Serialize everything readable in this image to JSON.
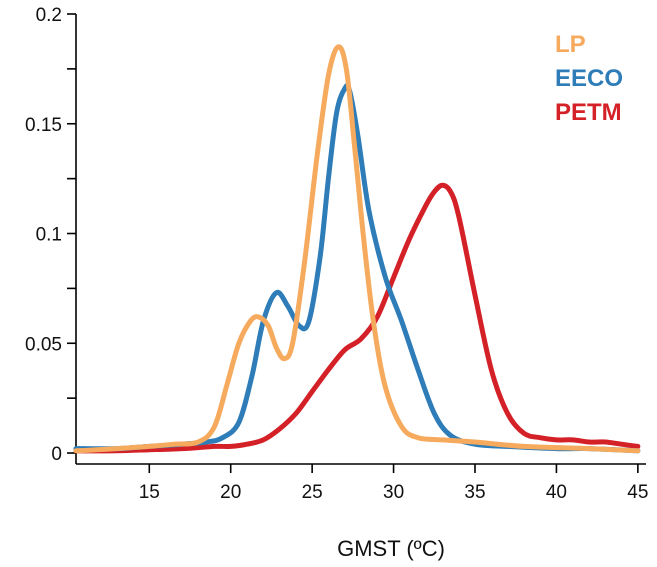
{
  "chart_data": {
    "type": "line",
    "title": "",
    "xlabel": "GMST (ºC)",
    "ylabel": "",
    "xlim": [
      10.5,
      45.5
    ],
    "ylim": [
      -0.005,
      0.2
    ],
    "x_ticks": [
      15,
      20,
      25,
      30,
      35,
      40,
      45
    ],
    "x_tick_labels": [
      "15",
      "20",
      "25",
      "30",
      "35",
      "40",
      "45"
    ],
    "y_ticks": [
      0,
      0.05,
      0.1,
      0.15,
      0.2
    ],
    "y_tick_labels": [
      "0",
      "0.05",
      "0.1",
      "0.15",
      "0.2"
    ],
    "grid": false,
    "legend_position": "top-right",
    "series": [
      {
        "name": "PETM",
        "color": "#d42027",
        "x": [
          10.5,
          13,
          15,
          17,
          19,
          20,
          21,
          22,
          23,
          24,
          25,
          26,
          27,
          28,
          29,
          30,
          31,
          32,
          32.5,
          33,
          33.5,
          34,
          35,
          36,
          37,
          38,
          39,
          40,
          41,
          42,
          43,
          44,
          45
        ],
        "y": [
          0.001,
          0.001,
          0.0015,
          0.002,
          0.003,
          0.003,
          0.004,
          0.006,
          0.011,
          0.018,
          0.028,
          0.038,
          0.047,
          0.052,
          0.062,
          0.08,
          0.098,
          0.113,
          0.119,
          0.122,
          0.119,
          0.108,
          0.072,
          0.038,
          0.018,
          0.009,
          0.007,
          0.006,
          0.006,
          0.005,
          0.005,
          0.004,
          0.003
        ]
      },
      {
        "name": "EECO",
        "color": "#2e7cb8",
        "x": [
          10.5,
          13,
          15,
          17,
          18.5,
          19.5,
          20.5,
          21.3,
          22,
          22.8,
          23.5,
          24.2,
          24.8,
          25.5,
          26,
          26.5,
          27,
          27.3,
          27.8,
          28.5,
          29.5,
          30.5,
          31.5,
          32.5,
          33.5,
          35,
          37,
          40,
          42,
          45
        ],
        "y": [
          0.002,
          0.002,
          0.003,
          0.004,
          0.005,
          0.007,
          0.014,
          0.035,
          0.06,
          0.073,
          0.067,
          0.058,
          0.06,
          0.09,
          0.125,
          0.155,
          0.166,
          0.165,
          0.145,
          0.11,
          0.08,
          0.06,
          0.038,
          0.018,
          0.008,
          0.004,
          0.003,
          0.002,
          0.002,
          0.001
        ]
      },
      {
        "name": "LP",
        "color": "#f5aa5e",
        "x": [
          10.5,
          13,
          15,
          16.5,
          18,
          19,
          19.8,
          20.5,
          21.2,
          21.7,
          22.3,
          22.8,
          23.3,
          23.8,
          24.5,
          25.3,
          26,
          26.6,
          27.1,
          27.6,
          28.2,
          28.8,
          29.5,
          30.5,
          31.5,
          33,
          35,
          38,
          42,
          45
        ],
        "y": [
          0.001,
          0.002,
          0.003,
          0.004,
          0.005,
          0.012,
          0.032,
          0.05,
          0.06,
          0.062,
          0.058,
          0.048,
          0.043,
          0.05,
          0.085,
          0.135,
          0.172,
          0.185,
          0.175,
          0.14,
          0.095,
          0.058,
          0.03,
          0.012,
          0.007,
          0.006,
          0.005,
          0.003,
          0.002,
          0.001
        ]
      }
    ]
  },
  "legend": {
    "items": [
      {
        "label": "LP",
        "color": "#f5aa5e"
      },
      {
        "label": "EECO",
        "color": "#2e7cb8"
      },
      {
        "label": "PETM",
        "color": "#d42027"
      }
    ]
  }
}
